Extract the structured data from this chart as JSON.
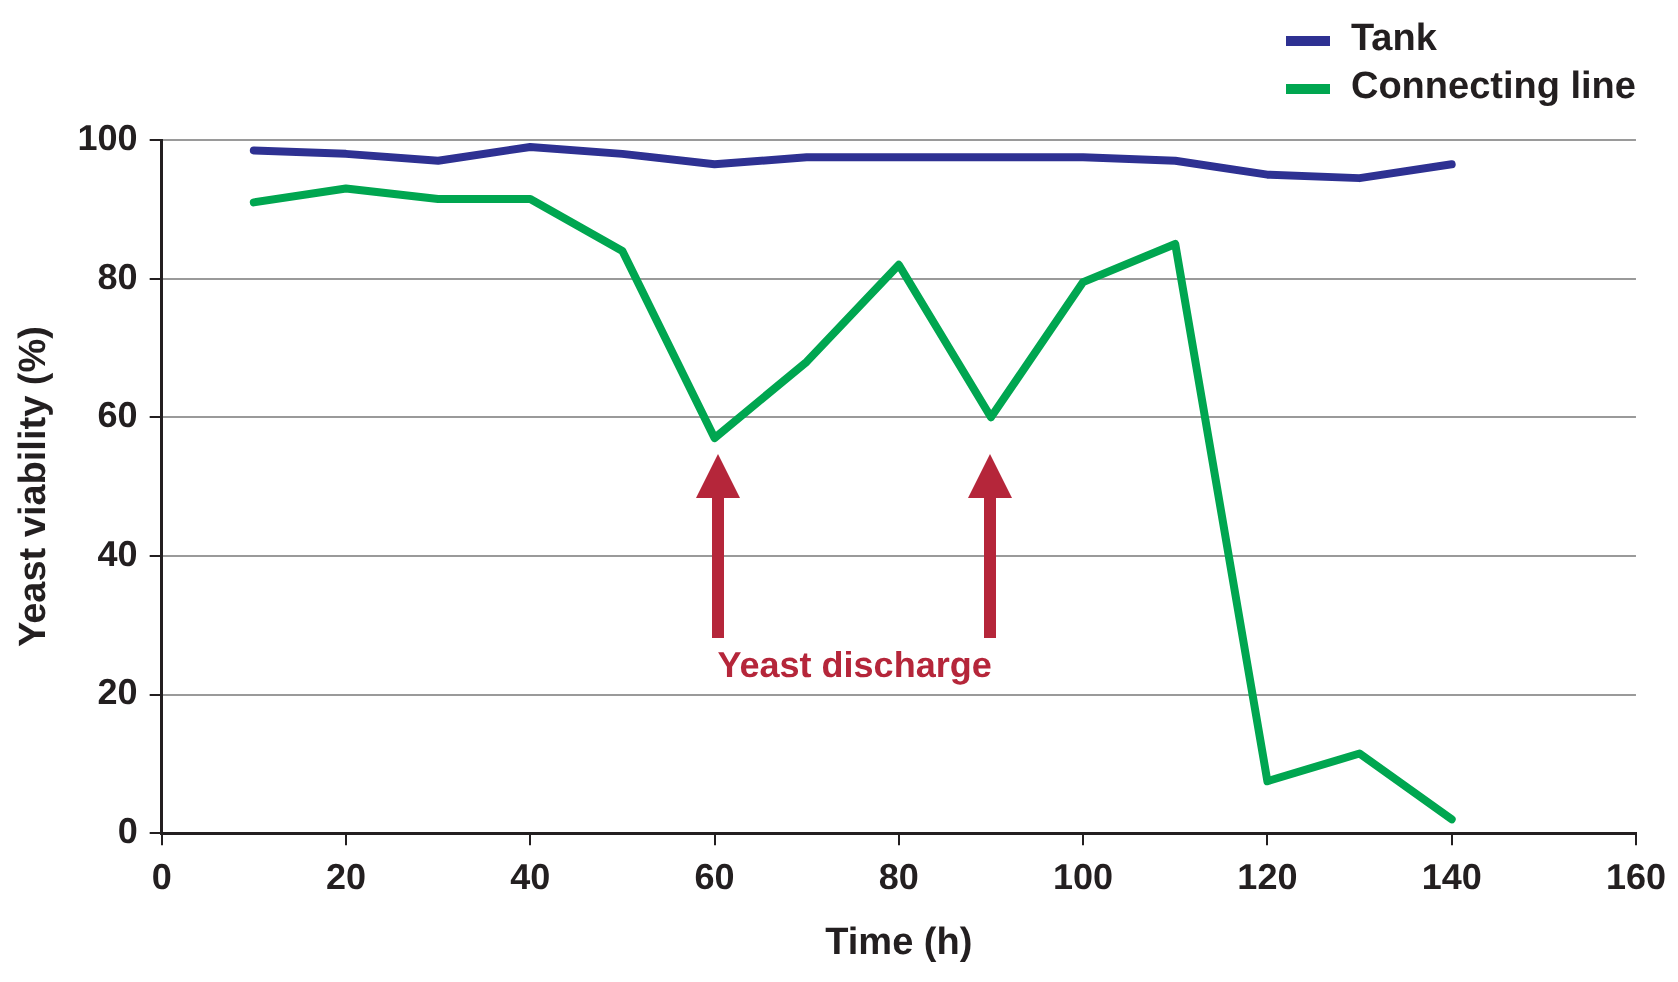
{
  "chart_data": {
    "type": "line",
    "xlabel": "Time (h)",
    "ylabel": "Yeast viability (%)",
    "x": [
      10,
      20,
      30,
      40,
      50,
      60,
      70,
      80,
      90,
      100,
      110,
      120,
      130,
      140
    ],
    "series": [
      {
        "name": "Tank",
        "color": "#2e3192",
        "values": [
          98.5,
          98,
          97,
          99,
          98,
          96.5,
          97.5,
          97.5,
          97.5,
          97.5,
          97,
          95,
          94.5,
          96.5
        ]
      },
      {
        "name": "Connecting line",
        "color": "#00a650",
        "values": [
          91,
          93,
          91.5,
          91.5,
          84,
          57,
          68,
          82,
          60,
          79.5,
          85,
          7.5,
          11.5,
          2
        ]
      }
    ],
    "xlim": [
      0,
      160
    ],
    "xticks": [
      0,
      20,
      40,
      60,
      80,
      100,
      120,
      140,
      160
    ],
    "ylim": [
      0,
      100
    ],
    "yticks": [
      0,
      20,
      40,
      60,
      80,
      100
    ],
    "grid": "y",
    "legend": "top right",
    "marker": "none",
    "line_style": "solid",
    "annotations": [
      "Yeast discharge"
    ]
  }
}
